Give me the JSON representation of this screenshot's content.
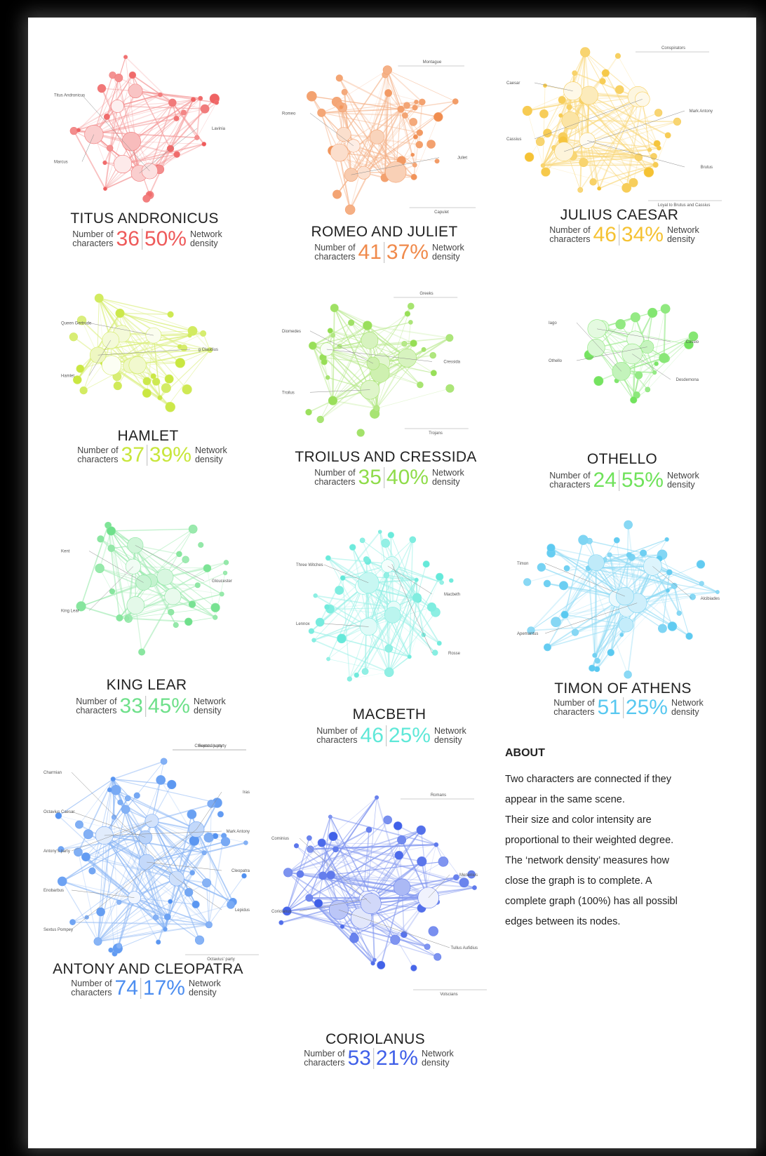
{
  "stat_labels": {
    "characters_line1": "Number of",
    "characters_line2": "characters",
    "density_line1": "Network",
    "density_line2": "density"
  },
  "plays": [
    {
      "title": "TITUS ANDRONICUS",
      "characters": "36",
      "density": "50%",
      "color": "#ee5a5a",
      "labels": [
        "Titus Andronicus",
        "Lavinia",
        "Marcus"
      ],
      "group_labels": []
    },
    {
      "title": "ROMEO AND JULIET",
      "characters": "41",
      "density": "37%",
      "color": "#f08a4b",
      "labels": [
        "Romeo",
        "Juliet"
      ],
      "group_labels": [
        "Montague",
        "Capulet"
      ]
    },
    {
      "title": "JULIUS CAESAR",
      "characters": "46",
      "density": "34%",
      "color": "#f5c233",
      "labels": [
        "Caesar",
        "Mark Antony",
        "Cassius",
        "Brutus"
      ],
      "group_labels": [
        "Conspirators",
        "Loyal to Brutus and Cassius"
      ]
    },
    {
      "title": "HAMLET",
      "characters": "37",
      "density": "39%",
      "color": "#c8e63c",
      "labels": [
        "Queen Gertrude",
        "g Claudius",
        "Hamlet"
      ],
      "group_labels": []
    },
    {
      "title": "TROILUS AND CRESSIDA",
      "characters": "35",
      "density": "40%",
      "color": "#8fdc4a",
      "labels": [
        "Diomedes",
        "Cressida",
        "Troilus"
      ],
      "group_labels": [
        "Greeks",
        "Trojans"
      ]
    },
    {
      "title": "OTHELLO",
      "characters": "24",
      "density": "55%",
      "color": "#6fe25a",
      "labels": [
        "Iago",
        "Cassio",
        "Othello",
        "Desdemona"
      ],
      "group_labels": []
    },
    {
      "title": "KING LEAR",
      "characters": "33",
      "density": "45%",
      "color": "#6ee08a",
      "labels": [
        "Kent",
        "Gloucester",
        "King Lear"
      ],
      "group_labels": []
    },
    {
      "title": "MACBETH",
      "characters": "46",
      "density": "25%",
      "color": "#5fe8d8",
      "labels": [
        "Three Witches",
        "Macbeth",
        "Lennox",
        "Rosse"
      ],
      "group_labels": []
    },
    {
      "title": "TIMON OF ATHENS",
      "characters": "51",
      "density": "25%",
      "color": "#58c8f0",
      "labels": [
        "Timon",
        "Alcibiades",
        "Apemantus"
      ],
      "group_labels": []
    },
    {
      "title": "ANTONY AND CLEOPATRA",
      "characters": "74",
      "density": "17%",
      "color": "#4d8ef0",
      "labels": [
        "Charmian",
        "Iras",
        "Octavius Caesar",
        "Mark Antony",
        "Antony's party",
        "Cleopatra",
        "Enobarbus",
        "Lepidus",
        "Sextus Pompey"
      ],
      "group_labels": [
        "Cleopatra's party",
        "Octavius' party",
        "Sextus' party"
      ]
    },
    {
      "title": "CORIOLANUS",
      "characters": "53",
      "density": "21%",
      "color": "#3f5fe8",
      "labels": [
        "Cominius",
        "Menenius",
        "Coriolanus",
        "Tullus Aufidius"
      ],
      "group_labels": [
        "Romans",
        "Volscians"
      ]
    }
  ],
  "about": {
    "heading": "ABOUT",
    "body": "Two characters are connected if they\nappear in the same scene.\nTheir size and color intensity are\nproportional to their weighted degree.\nThe ‘network density’ measures how\nclose the graph is to complete. A\ncomplete graph (100%) has all possibl\nedges between its nodes."
  }
}
